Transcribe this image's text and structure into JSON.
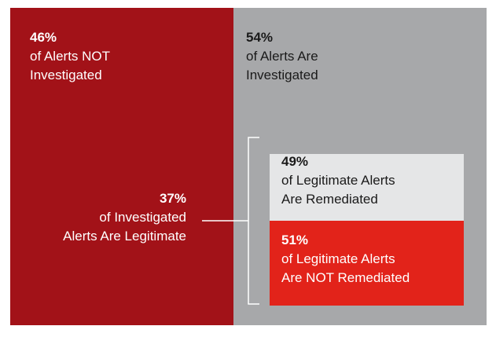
{
  "not_investigated": {
    "percent": "46%",
    "lines": [
      "of Alerts NOT",
      "Investigated"
    ]
  },
  "investigated": {
    "percent": "54%",
    "lines": [
      "of Alerts Are",
      "Investigated"
    ]
  },
  "legitimate": {
    "percent": "37%",
    "lines": [
      "of Investigated",
      "Alerts Are Legitimate"
    ]
  },
  "remediated": {
    "percent": "49%",
    "lines": [
      "of Legitimate Alerts",
      "Are Remediated"
    ]
  },
  "not_remediated": {
    "percent": "51%",
    "lines": [
      "of Legitimate Alerts",
      "Are NOT Remediated"
    ]
  }
}
